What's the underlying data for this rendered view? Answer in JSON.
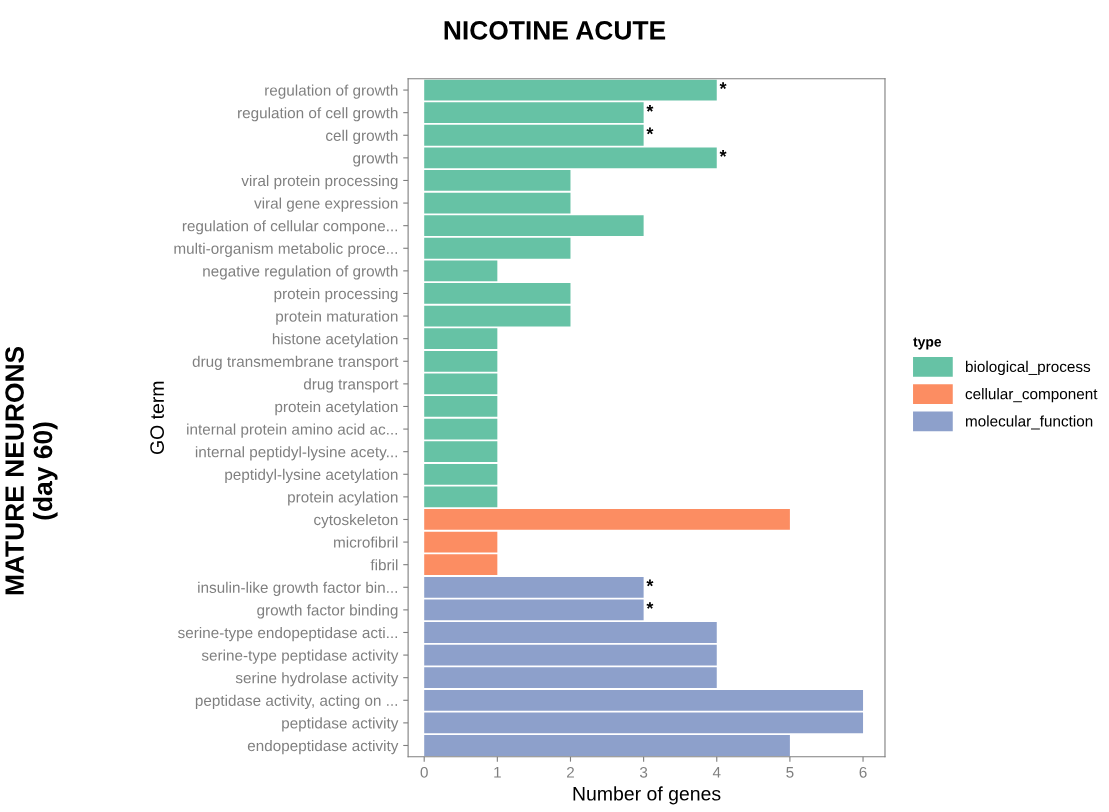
{
  "chart_data": {
    "type": "bar",
    "orientation": "horizontal",
    "title": "NICOTINE ACUTE",
    "xlabel": "Number of genes",
    "ylabel": "GO term",
    "legend_title": "type",
    "legend": "right",
    "grid": false,
    "categories": [
      "regulation of growth",
      "regulation of cell growth",
      "cell growth",
      "growth",
      "viral protein processing",
      "viral gene expression",
      "regulation of cellular compone...",
      "multi-organism metabolic proce...",
      "negative regulation of growth",
      "protein processing",
      "protein maturation",
      "histone acetylation",
      "drug transmembrane transport",
      "drug transport",
      "protein acetylation",
      "internal protein amino acid ac...",
      "internal peptidyl-lysine acety...",
      "peptidyl-lysine acetylation",
      "protein acylation",
      "cytoskeleton",
      "microfibril",
      "fibril",
      "insulin-like growth factor bin...",
      "growth factor binding",
      "serine-type endopeptidase acti...",
      "serine-type peptidase activity",
      "serine hydrolase activity",
      "peptidase activity, acting on ...",
      "peptidase activity",
      "endopeptidase activity"
    ],
    "series": [
      {
        "name": "biological_process",
        "color": "#66c2a5",
        "values": [
          4,
          3,
          3,
          4,
          2,
          2,
          3,
          2,
          1,
          2,
          2,
          1,
          1,
          1,
          1,
          1,
          1,
          1,
          1,
          null,
          null,
          null,
          null,
          null,
          null,
          null,
          null,
          null,
          null,
          null
        ],
        "value_labels": [
          "*",
          "*",
          "*",
          "*",
          null,
          null,
          null,
          null,
          null,
          null,
          null,
          null,
          null,
          null,
          null,
          null,
          null,
          null,
          null,
          null,
          null,
          null,
          null,
          null,
          null,
          null,
          null,
          null,
          null,
          null
        ]
      },
      {
        "name": "cellular_component",
        "color": "#fc8d62",
        "values": [
          null,
          null,
          null,
          null,
          null,
          null,
          null,
          null,
          null,
          null,
          null,
          null,
          null,
          null,
          null,
          null,
          null,
          null,
          null,
          5,
          1,
          1,
          null,
          null,
          null,
          null,
          null,
          null,
          null,
          null
        ]
      },
      {
        "name": "molecular_function",
        "color": "#8da0cb",
        "values": [
          null,
          null,
          null,
          null,
          null,
          null,
          null,
          null,
          null,
          null,
          null,
          null,
          null,
          null,
          null,
          null,
          null,
          null,
          null,
          null,
          null,
          null,
          3,
          3,
          4,
          4,
          4,
          6,
          6,
          5
        ],
        "value_labels": [
          null,
          null,
          null,
          null,
          null,
          null,
          null,
          null,
          null,
          null,
          null,
          null,
          null,
          null,
          null,
          null,
          null,
          null,
          null,
          null,
          null,
          null,
          "*",
          "*",
          null,
          null,
          null,
          null,
          null,
          null
        ]
      }
    ],
    "xlim": [
      -0.22,
      6.3
    ],
    "xticks": [
      0,
      1,
      2,
      3,
      4,
      5,
      6
    ],
    "annotations": [
      "MATURE NEURONS\n(day 60)"
    ]
  }
}
